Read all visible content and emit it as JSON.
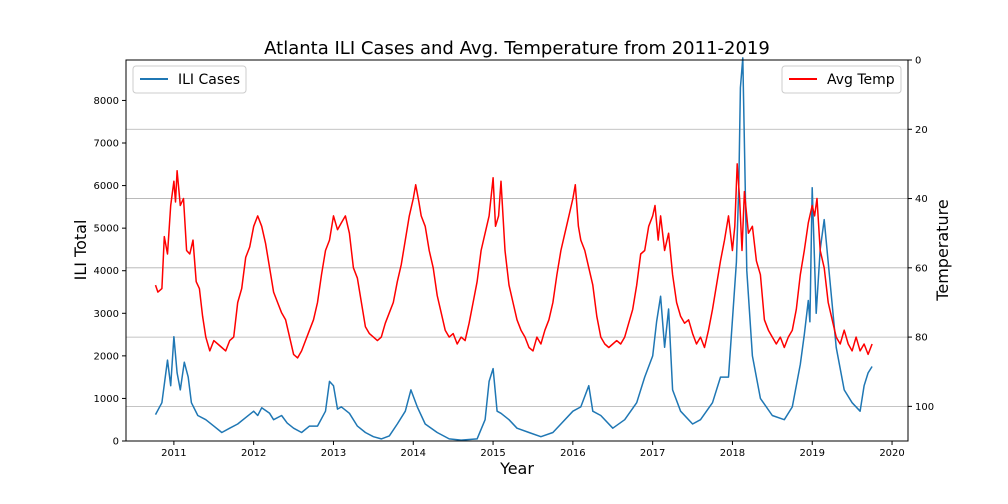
{
  "chart_data": {
    "type": "line",
    "title": "Atlanta ILI Cases and Avg. Temperature from 2011-2019",
    "xlabel": "Year",
    "ylabel_left": "ILI Total",
    "ylabel_right": "Temperature",
    "x_ticks": [
      "2011",
      "2012",
      "2013",
      "2014",
      "2015",
      "2016",
      "2017",
      "2018",
      "2019",
      "2020"
    ],
    "y_left_ticks": [
      "0",
      "1000",
      "2000",
      "3000",
      "4000",
      "5000",
      "6000",
      "7000",
      "8000"
    ],
    "y_right_ticks": [
      "0",
      "20",
      "40",
      "60",
      "80",
      "100"
    ],
    "xlim": [
      2010.4,
      2020.2
    ],
    "y_left_lim": [
      0,
      8950
    ],
    "y_right_lim": [
      110,
      0
    ],
    "y_right_inverted": true,
    "grid": "horizontal lines at right-axis ticks",
    "series": [
      {
        "name": "ILI Cases",
        "axis": "left",
        "color": "#1f77b4",
        "legend_position": "top-left",
        "points": [
          [
            2010.77,
            620
          ],
          [
            2010.85,
            900
          ],
          [
            2010.92,
            1900
          ],
          [
            2010.96,
            1300
          ],
          [
            2011.0,
            2450
          ],
          [
            2011.04,
            1600
          ],
          [
            2011.08,
            1200
          ],
          [
            2011.13,
            1850
          ],
          [
            2011.18,
            1500
          ],
          [
            2011.22,
            900
          ],
          [
            2011.3,
            600
          ],
          [
            2011.4,
            500
          ],
          [
            2011.5,
            350
          ],
          [
            2011.6,
            200
          ],
          [
            2011.7,
            300
          ],
          [
            2011.8,
            400
          ],
          [
            2011.9,
            550
          ],
          [
            2012.0,
            700
          ],
          [
            2012.05,
            600
          ],
          [
            2012.1,
            780
          ],
          [
            2012.2,
            650
          ],
          [
            2012.25,
            500
          ],
          [
            2012.35,
            600
          ],
          [
            2012.42,
            420
          ],
          [
            2012.5,
            300
          ],
          [
            2012.6,
            200
          ],
          [
            2012.7,
            350
          ],
          [
            2012.8,
            350
          ],
          [
            2012.9,
            700
          ],
          [
            2012.95,
            1400
          ],
          [
            2013.0,
            1300
          ],
          [
            2013.05,
            750
          ],
          [
            2013.1,
            800
          ],
          [
            2013.2,
            650
          ],
          [
            2013.3,
            350
          ],
          [
            2013.4,
            200
          ],
          [
            2013.5,
            100
          ],
          [
            2013.6,
            50
          ],
          [
            2013.7,
            120
          ],
          [
            2013.8,
            400
          ],
          [
            2013.9,
            700
          ],
          [
            2013.97,
            1200
          ],
          [
            2014.05,
            800
          ],
          [
            2014.15,
            400
          ],
          [
            2014.3,
            200
          ],
          [
            2014.45,
            50
          ],
          [
            2014.6,
            20
          ],
          [
            2014.8,
            50
          ],
          [
            2014.9,
            500
          ],
          [
            2014.95,
            1400
          ],
          [
            2015.0,
            1700
          ],
          [
            2015.05,
            700
          ],
          [
            2015.1,
            650
          ],
          [
            2015.2,
            500
          ],
          [
            2015.3,
            300
          ],
          [
            2015.45,
            200
          ],
          [
            2015.6,
            100
          ],
          [
            2015.75,
            200
          ],
          [
            2015.85,
            400
          ],
          [
            2016.0,
            700
          ],
          [
            2016.1,
            800
          ],
          [
            2016.2,
            1300
          ],
          [
            2016.25,
            700
          ],
          [
            2016.35,
            600
          ],
          [
            2016.5,
            300
          ],
          [
            2016.65,
            500
          ],
          [
            2016.8,
            900
          ],
          [
            2016.9,
            1500
          ],
          [
            2017.0,
            2000
          ],
          [
            2017.05,
            2800
          ],
          [
            2017.1,
            3400
          ],
          [
            2017.15,
            2200
          ],
          [
            2017.2,
            3100
          ],
          [
            2017.25,
            1200
          ],
          [
            2017.35,
            700
          ],
          [
            2017.5,
            400
          ],
          [
            2017.6,
            500
          ],
          [
            2017.75,
            900
          ],
          [
            2017.85,
            1500
          ],
          [
            2017.95,
            1500
          ],
          [
            2018.05,
            4200
          ],
          [
            2018.08,
            6000
          ],
          [
            2018.1,
            8300
          ],
          [
            2018.13,
            9000
          ],
          [
            2018.18,
            4000
          ],
          [
            2018.25,
            2000
          ],
          [
            2018.35,
            1000
          ],
          [
            2018.5,
            600
          ],
          [
            2018.65,
            500
          ],
          [
            2018.75,
            800
          ],
          [
            2018.85,
            1800
          ],
          [
            2018.9,
            2500
          ],
          [
            2018.95,
            3300
          ],
          [
            2018.97,
            2800
          ],
          [
            2019.0,
            5950
          ],
          [
            2019.05,
            3000
          ],
          [
            2019.1,
            4500
          ],
          [
            2019.15,
            5200
          ],
          [
            2019.2,
            4200
          ],
          [
            2019.3,
            2200
          ],
          [
            2019.4,
            1200
          ],
          [
            2019.5,
            900
          ],
          [
            2019.6,
            700
          ],
          [
            2019.65,
            1300
          ],
          [
            2019.7,
            1600
          ],
          [
            2019.75,
            1750
          ]
        ]
      },
      {
        "name": "Avg Temp",
        "axis": "right",
        "color": "#ff0000",
        "legend_position": "top-right",
        "points": [
          [
            2010.77,
            65
          ],
          [
            2010.8,
            67
          ],
          [
            2010.85,
            66
          ],
          [
            2010.88,
            51
          ],
          [
            2010.92,
            56
          ],
          [
            2010.96,
            42
          ],
          [
            2011.0,
            35
          ],
          [
            2011.02,
            41
          ],
          [
            2011.04,
            32
          ],
          [
            2011.08,
            42
          ],
          [
            2011.12,
            40
          ],
          [
            2011.16,
            55
          ],
          [
            2011.2,
            56
          ],
          [
            2011.24,
            52
          ],
          [
            2011.28,
            64
          ],
          [
            2011.32,
            66
          ],
          [
            2011.36,
            74
          ],
          [
            2011.4,
            80
          ],
          [
            2011.45,
            84
          ],
          [
            2011.5,
            81
          ],
          [
            2011.55,
            82
          ],
          [
            2011.6,
            83
          ],
          [
            2011.65,
            84
          ],
          [
            2011.7,
            81
          ],
          [
            2011.75,
            80
          ],
          [
            2011.8,
            70
          ],
          [
            2011.85,
            66
          ],
          [
            2011.9,
            57
          ],
          [
            2011.95,
            54
          ],
          [
            2012.0,
            48
          ],
          [
            2012.05,
            45
          ],
          [
            2012.1,
            48
          ],
          [
            2012.15,
            53
          ],
          [
            2012.2,
            60
          ],
          [
            2012.25,
            67
          ],
          [
            2012.3,
            70
          ],
          [
            2012.35,
            73
          ],
          [
            2012.4,
            75
          ],
          [
            2012.45,
            80
          ],
          [
            2012.5,
            85
          ],
          [
            2012.55,
            86
          ],
          [
            2012.6,
            84
          ],
          [
            2012.65,
            81
          ],
          [
            2012.7,
            78
          ],
          [
            2012.75,
            75
          ],
          [
            2012.8,
            70
          ],
          [
            2012.85,
            62
          ],
          [
            2012.9,
            55
          ],
          [
            2012.95,
            52
          ],
          [
            2013.0,
            45
          ],
          [
            2013.05,
            49
          ],
          [
            2013.1,
            47
          ],
          [
            2013.15,
            45
          ],
          [
            2013.2,
            50
          ],
          [
            2013.25,
            60
          ],
          [
            2013.3,
            63
          ],
          [
            2013.35,
            70
          ],
          [
            2013.4,
            77
          ],
          [
            2013.45,
            79
          ],
          [
            2013.5,
            80
          ],
          [
            2013.55,
            81
          ],
          [
            2013.6,
            80
          ],
          [
            2013.65,
            76
          ],
          [
            2013.7,
            73
          ],
          [
            2013.75,
            70
          ],
          [
            2013.8,
            64
          ],
          [
            2013.85,
            59
          ],
          [
            2013.9,
            52
          ],
          [
            2013.95,
            45
          ],
          [
            2014.0,
            40
          ],
          [
            2014.03,
            36
          ],
          [
            2014.07,
            41
          ],
          [
            2014.1,
            45
          ],
          [
            2014.15,
            48
          ],
          [
            2014.2,
            55
          ],
          [
            2014.25,
            60
          ],
          [
            2014.3,
            68
          ],
          [
            2014.35,
            73
          ],
          [
            2014.4,
            78
          ],
          [
            2014.45,
            80
          ],
          [
            2014.5,
            79
          ],
          [
            2014.55,
            82
          ],
          [
            2014.6,
            80
          ],
          [
            2014.65,
            81
          ],
          [
            2014.7,
            76
          ],
          [
            2014.75,
            70
          ],
          [
            2014.8,
            64
          ],
          [
            2014.85,
            55
          ],
          [
            2014.9,
            50
          ],
          [
            2014.95,
            45
          ],
          [
            2015.0,
            34
          ],
          [
            2015.03,
            48
          ],
          [
            2015.07,
            45
          ],
          [
            2015.1,
            35
          ],
          [
            2015.15,
            55
          ],
          [
            2015.2,
            65
          ],
          [
            2015.25,
            70
          ],
          [
            2015.3,
            75
          ],
          [
            2015.35,
            78
          ],
          [
            2015.4,
            80
          ],
          [
            2015.45,
            83
          ],
          [
            2015.5,
            84
          ],
          [
            2015.55,
            80
          ],
          [
            2015.6,
            82
          ],
          [
            2015.65,
            78
          ],
          [
            2015.7,
            75
          ],
          [
            2015.75,
            70
          ],
          [
            2015.8,
            62
          ],
          [
            2015.85,
            55
          ],
          [
            2015.9,
            50
          ],
          [
            2015.95,
            45
          ],
          [
            2016.0,
            40
          ],
          [
            2016.03,
            36
          ],
          [
            2016.07,
            48
          ],
          [
            2016.1,
            52
          ],
          [
            2016.15,
            55
          ],
          [
            2016.2,
            60
          ],
          [
            2016.25,
            65
          ],
          [
            2016.3,
            74
          ],
          [
            2016.35,
            80
          ],
          [
            2016.4,
            82
          ],
          [
            2016.45,
            83
          ],
          [
            2016.5,
            82
          ],
          [
            2016.55,
            81
          ],
          [
            2016.6,
            82
          ],
          [
            2016.65,
            80
          ],
          [
            2016.7,
            76
          ],
          [
            2016.75,
            72
          ],
          [
            2016.8,
            65
          ],
          [
            2016.85,
            56
          ],
          [
            2016.9,
            55
          ],
          [
            2016.95,
            48
          ],
          [
            2017.0,
            45
          ],
          [
            2017.03,
            42
          ],
          [
            2017.07,
            52
          ],
          [
            2017.1,
            45
          ],
          [
            2017.15,
            55
          ],
          [
            2017.2,
            50
          ],
          [
            2017.25,
            62
          ],
          [
            2017.3,
            70
          ],
          [
            2017.35,
            74
          ],
          [
            2017.4,
            76
          ],
          [
            2017.45,
            75
          ],
          [
            2017.5,
            79
          ],
          [
            2017.55,
            82
          ],
          [
            2017.6,
            80
          ],
          [
            2017.65,
            83
          ],
          [
            2017.7,
            78
          ],
          [
            2017.75,
            72
          ],
          [
            2017.8,
            65
          ],
          [
            2017.85,
            58
          ],
          [
            2017.9,
            52
          ],
          [
            2017.95,
            45
          ],
          [
            2018.0,
            55
          ],
          [
            2018.03,
            48
          ],
          [
            2018.06,
            30
          ],
          [
            2018.09,
            40
          ],
          [
            2018.12,
            55
          ],
          [
            2018.15,
            38
          ],
          [
            2018.2,
            50
          ],
          [
            2018.25,
            48
          ],
          [
            2018.3,
            58
          ],
          [
            2018.35,
            62
          ],
          [
            2018.4,
            75
          ],
          [
            2018.45,
            78
          ],
          [
            2018.5,
            80
          ],
          [
            2018.55,
            82
          ],
          [
            2018.6,
            80
          ],
          [
            2018.65,
            83
          ],
          [
            2018.7,
            80
          ],
          [
            2018.75,
            78
          ],
          [
            2018.8,
            72
          ],
          [
            2018.85,
            62
          ],
          [
            2018.9,
            55
          ],
          [
            2018.95,
            47
          ],
          [
            2019.0,
            42
          ],
          [
            2019.03,
            45
          ],
          [
            2019.06,
            40
          ],
          [
            2019.1,
            55
          ],
          [
            2019.15,
            60
          ],
          [
            2019.2,
            70
          ],
          [
            2019.25,
            75
          ],
          [
            2019.3,
            80
          ],
          [
            2019.35,
            82
          ],
          [
            2019.4,
            78
          ],
          [
            2019.45,
            82
          ],
          [
            2019.5,
            84
          ],
          [
            2019.55,
            80
          ],
          [
            2019.6,
            84
          ],
          [
            2019.65,
            82
          ],
          [
            2019.7,
            85
          ],
          [
            2019.75,
            82
          ]
        ]
      }
    ]
  }
}
